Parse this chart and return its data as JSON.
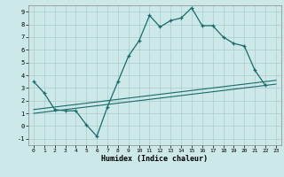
{
  "xlabel": "Humidex (Indice chaleur)",
  "xlim": [
    -0.5,
    23.5
  ],
  "ylim": [
    -1.5,
    9.5
  ],
  "xticks": [
    0,
    1,
    2,
    3,
    4,
    5,
    6,
    7,
    8,
    9,
    10,
    11,
    12,
    13,
    14,
    15,
    16,
    17,
    18,
    19,
    20,
    21,
    22,
    23
  ],
  "yticks": [
    -1,
    0,
    1,
    2,
    3,
    4,
    5,
    6,
    7,
    8,
    9
  ],
  "bg_color": "#cce8e8",
  "grid_color": "#aacccc",
  "line_color": "#1a6b6b",
  "series1_x": [
    0,
    1,
    2,
    3,
    4,
    5,
    6,
    7,
    8,
    9,
    10,
    11,
    12,
    13,
    14,
    15,
    16,
    17,
    18,
    19,
    20,
    21,
    22
  ],
  "series1_y": [
    3.5,
    2.6,
    1.3,
    1.2,
    1.2,
    0.1,
    -0.8,
    1.5,
    3.5,
    5.5,
    6.7,
    8.7,
    7.8,
    8.3,
    8.5,
    9.3,
    7.9,
    7.9,
    7.0,
    6.5,
    6.3,
    4.4,
    3.2
  ],
  "series2_x": [
    0,
    1,
    2,
    3,
    4,
    5,
    6,
    7,
    8,
    9,
    10,
    11,
    12,
    13,
    14,
    15,
    16,
    17,
    18,
    19,
    20,
    21,
    22,
    23
  ],
  "series2_y": [
    1.0,
    1.1,
    1.2,
    1.3,
    1.4,
    1.5,
    1.6,
    1.7,
    1.8,
    1.9,
    2.0,
    2.1,
    2.2,
    2.3,
    2.4,
    2.5,
    2.6,
    2.7,
    2.8,
    2.9,
    3.0,
    3.1,
    3.2,
    3.3
  ],
  "series3_x": [
    0,
    1,
    2,
    3,
    4,
    5,
    6,
    7,
    8,
    9,
    10,
    11,
    12,
    13,
    14,
    15,
    16,
    17,
    18,
    19,
    20,
    21,
    22,
    23
  ],
  "series3_y": [
    1.3,
    1.4,
    1.5,
    1.6,
    1.7,
    1.8,
    1.9,
    2.0,
    2.1,
    2.2,
    2.3,
    2.4,
    2.5,
    2.6,
    2.7,
    2.8,
    2.9,
    3.0,
    3.1,
    3.2,
    3.3,
    3.4,
    3.5,
    3.6
  ]
}
